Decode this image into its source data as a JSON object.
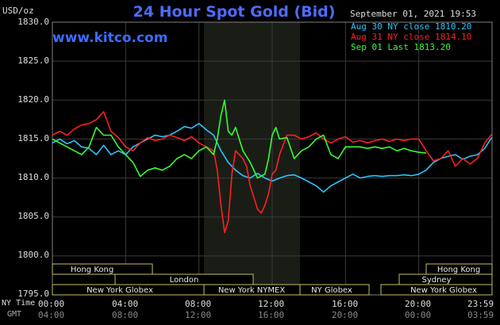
{
  "header": {
    "title": "24 Hour Spot Gold (Bid)",
    "site": "www.kitco.com",
    "unit": "USD/oz",
    "timestamp": "September 01, 2021 19:53"
  },
  "legend": [
    {
      "label": "Aug 30 NY close 1810.20",
      "color": "#29c6ff"
    },
    {
      "label": "Aug 31 NY close 1814.10",
      "color": "#ff2020"
    },
    {
      "label": "Sep 01 Last 1813.20",
      "color": "#33ff33"
    }
  ],
  "axis": {
    "y_ticks": [
      "1830.0",
      "1825.0",
      "1820.0",
      "1815.0",
      "1810.0",
      "1805.0",
      "1800.0",
      "1795.0"
    ],
    "x_row1_label": "NY Time",
    "x_row2_label": "GMT",
    "x_ticks_ny": [
      "00:00",
      "04:00",
      "08:00",
      "12:00",
      "16:00",
      "20:00",
      "23:59"
    ],
    "x_ticks_gmt": [
      "04:00",
      "08:00",
      "12:00",
      "16:00",
      "20:00",
      "00:00",
      "03:59"
    ]
  },
  "sessions": [
    {
      "label": "Hong Kong"
    },
    {
      "label": "London"
    },
    {
      "label": "New York Globex"
    },
    {
      "label": "New York NYMEX"
    },
    {
      "label": "NY Globex"
    },
    {
      "label": "Hong Kong"
    },
    {
      "label": "Sydney"
    },
    {
      "label": "New York Globex"
    }
  ],
  "chart_data": {
    "type": "line",
    "ylim": [
      1795,
      1830
    ],
    "xlim": [
      0,
      24
    ],
    "grid": true,
    "legend_position": "top-right",
    "series": [
      {
        "name": "Aug 30 NY close 1810.20",
        "color": "#29c6ff",
        "x": [
          0,
          0.4,
          0.8,
          1.2,
          1.6,
          2.0,
          2.4,
          2.8,
          3.2,
          3.6,
          4.0,
          4.4,
          4.8,
          5.2,
          5.6,
          6.0,
          6.4,
          6.8,
          7.2,
          7.6,
          8.0,
          8.4,
          8.8,
          9.2,
          9.6,
          10.0,
          10.4,
          10.8,
          11.2,
          11.6,
          12.0,
          12.4,
          12.8,
          13.2,
          13.6,
          14.0,
          14.4,
          14.8,
          15.2,
          15.6,
          16.0,
          16.4,
          16.8,
          17.2,
          17.6,
          18.0,
          18.4,
          18.8,
          19.2,
          19.6,
          20.0,
          20.4,
          20.8,
          21.2,
          21.6,
          22.0,
          22.4,
          22.8,
          23.2,
          23.6,
          23.98
        ],
        "y": [
          1814.5,
          1815.0,
          1814.4,
          1814.8,
          1814.0,
          1813.8,
          1813.0,
          1814.2,
          1813.0,
          1813.5,
          1813.0,
          1814.0,
          1814.5,
          1815.0,
          1815.5,
          1815.3,
          1815.5,
          1816.0,
          1816.6,
          1816.4,
          1817.0,
          1816.2,
          1815.5,
          1813.5,
          1812.0,
          1811.0,
          1810.3,
          1810.0,
          1810.6,
          1810.0,
          1809.6,
          1810.0,
          1810.3,
          1810.4,
          1810.0,
          1809.5,
          1809.0,
          1808.2,
          1809.0,
          1809.5,
          1810.0,
          1810.5,
          1810.0,
          1810.2,
          1810.3,
          1810.2,
          1810.3,
          1810.3,
          1810.4,
          1810.3,
          1810.5,
          1811.0,
          1812.0,
          1812.5,
          1812.8,
          1813.0,
          1812.4,
          1812.8,
          1813.0,
          1813.8,
          1815.2
        ]
      },
      {
        "name": "Aug 31 NY close 1814.10",
        "color": "#ff2020",
        "x": [
          0,
          0.4,
          0.8,
          1.2,
          1.6,
          2.0,
          2.4,
          2.8,
          3.2,
          3.6,
          4.0,
          4.4,
          4.8,
          5.2,
          5.6,
          6.0,
          6.4,
          6.8,
          7.2,
          7.6,
          8.0,
          8.4,
          8.8,
          9.0,
          9.2,
          9.4,
          9.6,
          9.8,
          10.0,
          10.2,
          10.4,
          10.6,
          10.8,
          11.0,
          11.2,
          11.4,
          11.6,
          11.8,
          12.0,
          12.2,
          12.4,
          12.8,
          13.2,
          13.6,
          14.0,
          14.4,
          14.8,
          15.2,
          15.6,
          16.0,
          16.4,
          16.8,
          17.2,
          17.6,
          18.0,
          18.4,
          18.8,
          19.2,
          19.6,
          20.0,
          20.4,
          20.8,
          21.2,
          21.6,
          22.0,
          22.4,
          22.8,
          23.2,
          23.6,
          23.98
        ],
        "y": [
          1815.5,
          1816.0,
          1815.5,
          1816.3,
          1816.8,
          1817.0,
          1817.5,
          1818.5,
          1816.0,
          1815.2,
          1814.0,
          1813.5,
          1814.5,
          1815.2,
          1814.8,
          1815.0,
          1815.5,
          1815.2,
          1814.8,
          1815.3,
          1814.5,
          1814.0,
          1813.5,
          1811.0,
          1806.5,
          1803.0,
          1804.5,
          1810.5,
          1813.5,
          1813.0,
          1812.5,
          1811.5,
          1809.0,
          1807.5,
          1806.0,
          1805.5,
          1806.5,
          1808.0,
          1810.5,
          1811.0,
          1813.0,
          1815.5,
          1815.5,
          1815.0,
          1815.3,
          1815.8,
          1815.0,
          1814.5,
          1815.0,
          1815.3,
          1814.6,
          1814.8,
          1814.5,
          1814.8,
          1815.0,
          1814.7,
          1815.0,
          1814.8,
          1815.0,
          1815.0,
          1813.5,
          1812.2,
          1812.5,
          1813.5,
          1811.5,
          1812.5,
          1811.8,
          1812.5,
          1814.5,
          1815.6
        ]
      },
      {
        "name": "Sep 01 Last 1813.20",
        "color": "#33ff33",
        "x": [
          0,
          0.4,
          0.8,
          1.2,
          1.6,
          2.0,
          2.4,
          2.8,
          3.2,
          3.6,
          4.0,
          4.4,
          4.8,
          5.2,
          5.6,
          6.0,
          6.4,
          6.8,
          7.2,
          7.6,
          8.0,
          8.4,
          8.8,
          9.0,
          9.2,
          9.4,
          9.6,
          9.8,
          10.0,
          10.4,
          10.8,
          11.2,
          11.6,
          11.8,
          12.0,
          12.2,
          12.4,
          12.8,
          13.2,
          13.6,
          14.0,
          14.4,
          14.8,
          15.2,
          15.6,
          16.0,
          16.4,
          16.8,
          17.2,
          17.6,
          18.0,
          18.4,
          18.8,
          19.2,
          19.6,
          20.0,
          20.4
        ],
        "y": [
          1815.0,
          1814.5,
          1814.0,
          1813.5,
          1813.0,
          1814.0,
          1816.5,
          1815.5,
          1815.5,
          1814.0,
          1813.0,
          1812.0,
          1810.2,
          1811.0,
          1811.3,
          1811.0,
          1811.5,
          1812.5,
          1813.0,
          1812.5,
          1813.5,
          1814.0,
          1813.0,
          1815.0,
          1818.0,
          1820.0,
          1816.0,
          1815.5,
          1816.5,
          1813.5,
          1812.0,
          1810.0,
          1810.5,
          1812.5,
          1815.5,
          1816.5,
          1815.0,
          1815.2,
          1812.5,
          1813.5,
          1814.0,
          1815.0,
          1815.5,
          1813.0,
          1812.5,
          1814.0,
          1814.0,
          1814.0,
          1813.8,
          1814.0,
          1813.8,
          1814.0,
          1813.5,
          1813.8,
          1813.5,
          1813.3,
          1813.2
        ]
      }
    ]
  },
  "colors": {
    "background": "#000000",
    "grid": "#3b3b3b",
    "nymex_band": "#1a1d16",
    "session_box_stroke": "#c8c060"
  }
}
